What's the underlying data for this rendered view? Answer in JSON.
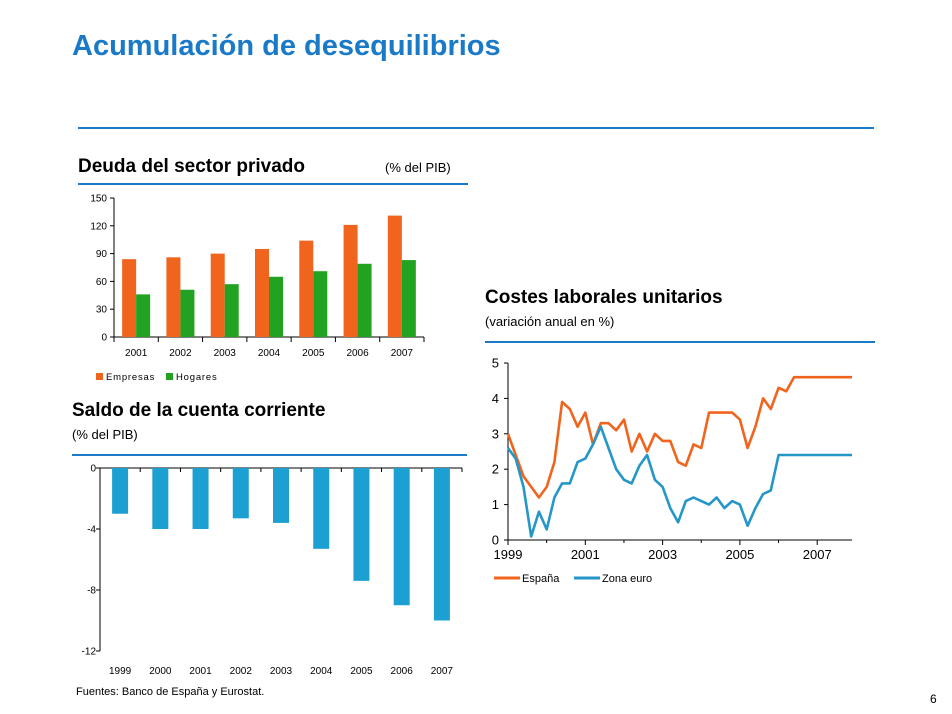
{
  "title": "Acumulación de desequilibrios",
  "colors": {
    "accent": "#1a7ac8",
    "espana": "#f0641e",
    "zona_euro": "#2596c8",
    "hogares": "#21a321",
    "saldo": "#1ca0d2"
  },
  "panels": {
    "deuda": {
      "title": "Deuda del sector privado",
      "subtitle": "(% del PIB)"
    },
    "costes": {
      "title": "Costes laborales unitarios",
      "subtitle": "(variación anual en %)"
    },
    "saldo": {
      "title": "Saldo de la cuenta corriente",
      "subtitle": "(% del PIB)"
    }
  },
  "chart_data": [
    {
      "type": "bar",
      "categories": [
        "2001",
        "2002",
        "2003",
        "2004",
        "2005",
        "2006",
        "2007"
      ],
      "series": [
        {
          "name": "Empresas",
          "color": "#f0641e",
          "values": [
            84,
            86,
            90,
            95,
            104,
            121,
            131
          ]
        },
        {
          "name": "Hogares",
          "color": "#21a321",
          "values": [
            46,
            51,
            57,
            65,
            71,
            79,
            83
          ]
        }
      ],
      "yticks": [
        "0",
        "30",
        "60",
        "90",
        "120",
        "150"
      ],
      "ylim": [
        0,
        150
      ],
      "legend": "bottom-left"
    },
    {
      "type": "line",
      "xticks": [
        "1999",
        "2001",
        "2003",
        "2005",
        "2007"
      ],
      "yticks": [
        "0",
        "1",
        "2",
        "3",
        "4",
        "5"
      ],
      "xlim": [
        1999,
        2007.9
      ],
      "ylim": [
        0,
        5
      ],
      "legend": "bottom-left",
      "series": [
        {
          "name": "España",
          "color": "#f0641e",
          "x": [
            1999.0,
            1999.2,
            1999.4,
            1999.6,
            1999.8,
            2000.0,
            2000.2,
            2000.4,
            2000.6,
            2000.8,
            2001.0,
            2001.2,
            2001.4,
            2001.6,
            2001.8,
            2002.0,
            2002.2,
            2002.4,
            2002.6,
            2002.8,
            2003.0,
            2003.2,
            2003.4,
            2003.6,
            2003.8,
            2004.0,
            2004.2,
            2004.4,
            2004.6,
            2004.8,
            2005.0,
            2005.2,
            2005.4,
            2005.6,
            2005.8,
            2006.0,
            2006.2,
            2006.4,
            2006.6,
            2006.8,
            2007.0,
            2007.2,
            2007.4,
            2007.6,
            2007.8,
            2007.9
          ],
          "y": [
            3.0,
            2.4,
            1.8,
            1.5,
            1.2,
            1.5,
            2.2,
            3.9,
            3.7,
            3.2,
            3.6,
            2.7,
            3.3,
            3.3,
            3.1,
            3.4,
            2.5,
            3.0,
            2.5,
            3.0,
            2.8,
            2.8,
            2.2,
            2.1,
            2.7,
            2.6,
            3.6,
            3.6,
            3.6,
            3.6,
            3.4,
            2.6,
            3.2,
            4.0,
            3.7,
            4.3,
            4.2,
            4.6,
            4.6,
            4.6,
            4.6,
            4.6,
            4.6,
            4.6,
            4.6,
            4.6
          ]
        },
        {
          "name": "Zona euro",
          "color": "#2596c8",
          "x": [
            1999.0,
            1999.2,
            1999.4,
            1999.6,
            1999.8,
            2000.0,
            2000.2,
            2000.4,
            2000.6,
            2000.8,
            2001.0,
            2001.2,
            2001.4,
            2001.6,
            2001.8,
            2002.0,
            2002.2,
            2002.4,
            2002.6,
            2002.8,
            2003.0,
            2003.2,
            2003.4,
            2003.6,
            2003.8,
            2004.0,
            2004.2,
            2004.4,
            2004.6,
            2004.8,
            2005.0,
            2005.2,
            2005.4,
            2005.6,
            2005.8,
            2006.0,
            2006.2,
            2006.4,
            2006.6,
            2006.8,
            2007.0,
            2007.2,
            2007.4,
            2007.6,
            2007.8,
            2007.9
          ],
          "y": [
            2.6,
            2.3,
            1.5,
            0.1,
            0.8,
            0.3,
            1.2,
            1.6,
            1.6,
            2.2,
            2.3,
            2.7,
            3.2,
            2.6,
            2.0,
            1.7,
            1.6,
            2.1,
            2.4,
            1.7,
            1.5,
            0.9,
            0.5,
            1.1,
            1.2,
            1.1,
            1.0,
            1.2,
            0.9,
            1.1,
            1.0,
            0.4,
            0.9,
            1.3,
            1.4,
            2.4,
            2.4,
            2.4,
            2.4,
            2.4,
            2.4,
            2.4,
            2.4,
            2.4,
            2.4,
            2.4
          ]
        }
      ]
    },
    {
      "type": "bar",
      "categories": [
        "1999",
        "2000",
        "2001",
        "2002",
        "2003",
        "2004",
        "2005",
        "2006",
        "2007"
      ],
      "values": [
        -3.0,
        -4.0,
        -4.0,
        -3.3,
        -3.6,
        -5.3,
        -7.4,
        -9.0,
        -10.0
      ],
      "color": "#1ca0d2",
      "yticks": [
        "0",
        "-4",
        "-8",
        "-12"
      ],
      "ylim": [
        -12,
        0
      ]
    }
  ],
  "source": "Fuentes: Banco de España y Eurostat.",
  "page_number": "6"
}
